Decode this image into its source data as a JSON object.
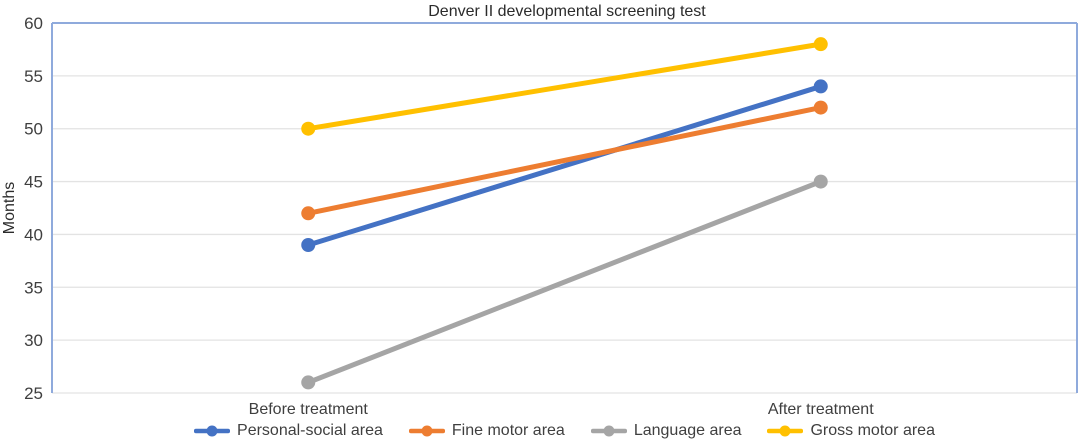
{
  "chart_data": {
    "type": "line",
    "title": "Denver II developmental screening test",
    "xlabel": "",
    "ylabel": "Months",
    "categories": [
      "Before treatment",
      "After treatment"
    ],
    "series": [
      {
        "name": "Personal-social area",
        "color": "#4472C4",
        "values": [
          39,
          54
        ]
      },
      {
        "name": "Fine motor area",
        "color": "#ED7D31",
        "values": [
          42,
          52
        ]
      },
      {
        "name": "Language area",
        "color": "#A5A5A5",
        "values": [
          26,
          45
        ]
      },
      {
        "name": "Gross motor area",
        "color": "#FFC000",
        "values": [
          50,
          58
        ]
      }
    ],
    "ylim": [
      25,
      60
    ],
    "ytick_step": 5,
    "yticks": [
      25,
      30,
      35,
      40,
      45,
      50,
      55,
      60
    ],
    "grid": true,
    "legend_position": "bottom"
  },
  "colors": {
    "plot_border": "#8FAADC",
    "gridline": "#E3E3E3",
    "axis_text": "#3F3F3F",
    "title_text": "#2B2B2B"
  }
}
